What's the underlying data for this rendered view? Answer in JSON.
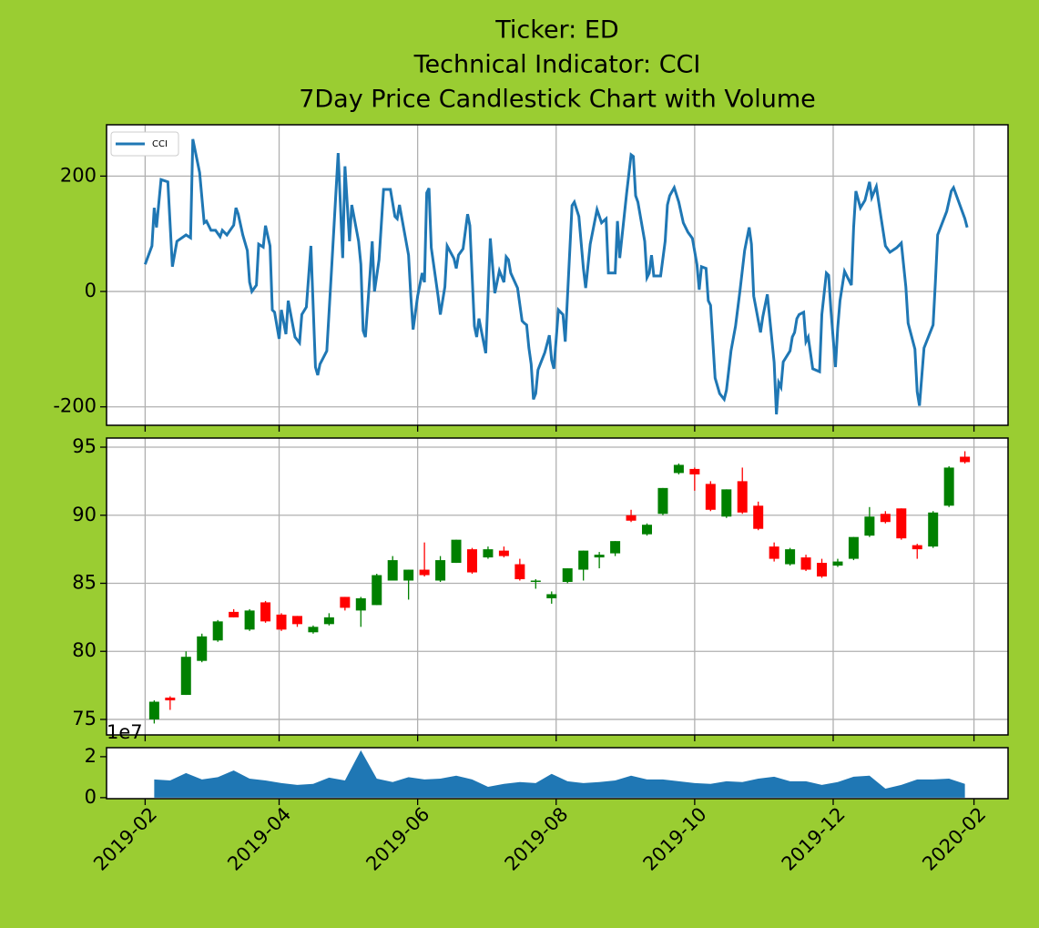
{
  "chart_data": [
    {
      "type": "line",
      "title": [
        "Ticker: ED",
        "Technical Indicator: CCI",
        "7Day Price Candlestick Chart with Volume"
      ],
      "legend": "upper left",
      "grid": true,
      "xlim": [
        "2019-01-15",
        "2020-02-16"
      ],
      "xticks": [
        "2019-02-01",
        "2019-04-01",
        "2019-06-01",
        "2019-08-01",
        "2019-10-01",
        "2019-12-01",
        "2020-02-01"
      ],
      "ylim": [
        -232,
        289
      ],
      "yticks": [
        -200,
        0,
        200
      ],
      "series": [
        {
          "name": "CCI",
          "color": "#1f77b4",
          "x": [
            "2019-02-01",
            "2019-02-04",
            "2019-02-05",
            "2019-02-06",
            "2019-02-08",
            "2019-02-11",
            "2019-02-13",
            "2019-02-15",
            "2019-02-19",
            "2019-02-21",
            "2019-02-22",
            "2019-02-25",
            "2019-02-27",
            "2019-02-28",
            "2019-03-02",
            "2019-03-04",
            "2019-03-06",
            "2019-03-07",
            "2019-03-09",
            "2019-03-12",
            "2019-03-13",
            "2019-03-14",
            "2019-03-16",
            "2019-03-18",
            "2019-03-19",
            "2019-03-20",
            "2019-03-22",
            "2019-03-23",
            "2019-03-25",
            "2019-03-26",
            "2019-03-28",
            "2019-03-29",
            "2019-03-30",
            "2019-04-01",
            "2019-04-02",
            "2019-04-04",
            "2019-04-05",
            "2019-04-08",
            "2019-04-10",
            "2019-04-11",
            "2019-04-13",
            "2019-04-15",
            "2019-04-17",
            "2019-04-18",
            "2019-04-19",
            "2019-04-22",
            "2019-04-24",
            "2019-04-25",
            "2019-04-27",
            "2019-04-28",
            "2019-04-29",
            "2019-04-30",
            "2019-05-02",
            "2019-05-03",
            "2019-05-06",
            "2019-05-07",
            "2019-05-08",
            "2019-05-09",
            "2019-05-11",
            "2019-05-12",
            "2019-05-13",
            "2019-05-15",
            "2019-05-17",
            "2019-05-20",
            "2019-05-22",
            "2019-05-23",
            "2019-05-24",
            "2019-05-28",
            "2019-05-29",
            "2019-05-30",
            "2019-06-01",
            "2019-06-03",
            "2019-06-04",
            "2019-06-05",
            "2019-06-06",
            "2019-06-07",
            "2019-06-10",
            "2019-06-11",
            "2019-06-13",
            "2019-06-14",
            "2019-06-17",
            "2019-06-18",
            "2019-06-19",
            "2019-06-21",
            "2019-06-23",
            "2019-06-24",
            "2019-06-26",
            "2019-06-27",
            "2019-06-28",
            "2019-07-01",
            "2019-07-03",
            "2019-07-05",
            "2019-07-07",
            "2019-07-09",
            "2019-07-10",
            "2019-07-11",
            "2019-07-12",
            "2019-07-15",
            "2019-07-17",
            "2019-07-18",
            "2019-07-19",
            "2019-07-20",
            "2019-07-21",
            "2019-07-22",
            "2019-07-23",
            "2019-07-24",
            "2019-07-25",
            "2019-07-27",
            "2019-07-29",
            "2019-07-30",
            "2019-07-31",
            "2019-08-02",
            "2019-08-04",
            "2019-08-05",
            "2019-08-08",
            "2019-08-09",
            "2019-08-11",
            "2019-08-13",
            "2019-08-14",
            "2019-08-16",
            "2019-08-19",
            "2019-08-21",
            "2019-08-23",
            "2019-08-24",
            "2019-08-27",
            "2019-08-28",
            "2019-08-29",
            "2019-08-30",
            "2019-09-01",
            "2019-09-03",
            "2019-09-04",
            "2019-09-05",
            "2019-09-06",
            "2019-09-09",
            "2019-09-10",
            "2019-09-11",
            "2019-09-12",
            "2019-09-13",
            "2019-09-16",
            "2019-09-18",
            "2019-09-19",
            "2019-09-20",
            "2019-09-22",
            "2019-09-24",
            "2019-09-26",
            "2019-09-28",
            "2019-09-30",
            "2019-10-02",
            "2019-10-03",
            "2019-10-04",
            "2019-10-06",
            "2019-10-07",
            "2019-10-08",
            "2019-10-10",
            "2019-10-12",
            "2019-10-14",
            "2019-10-15",
            "2019-10-17",
            "2019-10-19",
            "2019-10-21",
            "2019-10-23",
            "2019-10-25",
            "2019-10-26",
            "2019-10-27",
            "2019-10-30",
            "2019-10-31",
            "2019-11-02",
            "2019-11-05",
            "2019-11-06",
            "2019-11-07",
            "2019-11-08",
            "2019-11-09",
            "2019-11-12",
            "2019-11-13",
            "2019-11-14",
            "2019-11-15",
            "2019-11-16",
            "2019-11-18",
            "2019-11-19",
            "2019-11-20",
            "2019-11-22",
            "2019-11-25",
            "2019-11-26",
            "2019-11-28",
            "2019-11-29",
            "2019-11-30",
            "2019-12-02",
            "2019-12-03",
            "2019-12-04",
            "2019-12-06",
            "2019-12-09",
            "2019-12-10",
            "2019-12-11",
            "2019-12-13",
            "2019-12-15",
            "2019-12-17",
            "2019-12-18",
            "2019-12-20",
            "2019-12-22",
            "2019-12-24",
            "2019-12-26",
            "2019-12-29",
            "2019-12-31",
            "2020-01-02",
            "2020-01-03",
            "2020-01-06",
            "2020-01-07",
            "2020-01-08",
            "2020-01-10",
            "2020-01-14",
            "2020-01-15",
            "2020-01-16",
            "2020-01-20",
            "2020-01-22",
            "2020-01-23",
            "2020-01-28",
            "2020-01-29"
          ],
          "values": [
            47,
            79,
            145,
            111,
            194,
            190,
            43,
            87,
            98,
            93,
            264,
            206,
            119,
            122,
            106,
            106,
            95,
            106,
            98,
            115,
            145,
            134,
            98,
            71,
            16,
            0,
            11,
            82,
            77,
            114,
            79,
            -32,
            -36,
            -82,
            -32,
            -74,
            -16,
            -79,
            -89,
            -40,
            -27,
            79,
            -131,
            -145,
            -126,
            -103,
            32,
            101,
            240,
            150,
            58,
            217,
            87,
            150,
            87,
            47,
            -68,
            -79,
            28,
            87,
            0,
            55,
            177,
            177,
            130,
            126,
            150,
            63,
            -8,
            -66,
            -8,
            32,
            16,
            171,
            179,
            76,
            -8,
            -40,
            8,
            79,
            57,
            40,
            63,
            74,
            134,
            114,
            -60,
            -79,
            -47,
            -107,
            92,
            -3,
            36,
            16,
            60,
            55,
            32,
            6,
            -51,
            -55,
            -58,
            -98,
            -126,
            -187,
            -177,
            -136,
            -126,
            -106,
            -76,
            -119,
            -134,
            -32,
            -40,
            -87,
            149,
            155,
            130,
            40,
            6,
            82,
            142,
            119,
            126,
            32,
            32,
            122,
            58,
            95,
            169,
            237,
            234,
            166,
            155,
            87,
            24,
            32,
            63,
            27,
            27,
            87,
            150,
            166,
            180,
            155,
            119,
            103,
            92,
            47,
            3,
            43,
            40,
            -16,
            -24,
            -150,
            -177,
            -187,
            -171,
            -103,
            -60,
            3,
            71,
            111,
            82,
            -8,
            -71,
            -44,
            -5,
            -123,
            -213,
            -158,
            -166,
            -122,
            -103,
            -79,
            -71,
            -47,
            -40,
            -36,
            -87,
            -79,
            -134,
            -139,
            -40,
            32,
            28,
            -32,
            -131,
            -63,
            -16,
            35,
            11,
            111,
            174,
            145,
            158,
            190,
            163,
            182,
            130,
            79,
            68,
            76,
            84,
            8,
            -55,
            -100,
            -174,
            -198,
            -98,
            -58,
            16,
            98,
            139,
            174,
            180,
            126,
            111
          ]
        }
      ]
    },
    {
      "type": "candlestick",
      "grid": true,
      "up_color": "#008000",
      "down_color": "#ff0000",
      "xlim": [
        "2019-01-15",
        "2020-02-16"
      ],
      "xticks": [
        "2019-02-01",
        "2019-04-01",
        "2019-06-01",
        "2019-08-01",
        "2019-10-01",
        "2019-12-01",
        "2020-02-01"
      ],
      "ylim": [
        73.86,
        95.67
      ],
      "yticks": [
        75,
        80,
        85,
        90,
        95
      ],
      "x": [
        "2019-02-05",
        "2019-02-12",
        "2019-02-19",
        "2019-02-26",
        "2019-03-05",
        "2019-03-12",
        "2019-03-19",
        "2019-03-26",
        "2019-04-02",
        "2019-04-09",
        "2019-04-16",
        "2019-04-23",
        "2019-04-30",
        "2019-05-07",
        "2019-05-14",
        "2019-05-21",
        "2019-05-28",
        "2019-06-04",
        "2019-06-11",
        "2019-06-18",
        "2019-06-25",
        "2019-07-02",
        "2019-07-09",
        "2019-07-16",
        "2019-07-23",
        "2019-07-30",
        "2019-08-06",
        "2019-08-13",
        "2019-08-20",
        "2019-08-27",
        "2019-09-03",
        "2019-09-10",
        "2019-09-17",
        "2019-09-24",
        "2019-10-01",
        "2019-10-08",
        "2019-10-15",
        "2019-10-22",
        "2019-10-29",
        "2019-11-05",
        "2019-11-12",
        "2019-11-19",
        "2019-11-26",
        "2019-12-03",
        "2019-12-10",
        "2019-12-17",
        "2019-12-24",
        "2019-12-31",
        "2020-01-07",
        "2020-01-14",
        "2020-01-21",
        "2020-01-28"
      ],
      "open": [
        75.0,
        76.6,
        76.8,
        79.3,
        80.8,
        82.9,
        81.6,
        83.6,
        82.7,
        82.6,
        81.4,
        82.0,
        84.0,
        83.0,
        83.4,
        85.2,
        85.2,
        86.0,
        85.2,
        86.5,
        87.5,
        86.9,
        87.4,
        86.4,
        85.1,
        83.9,
        85.1,
        86.0,
        86.9,
        87.2,
        90.0,
        88.6,
        90.1,
        93.1,
        93.4,
        92.3,
        89.9,
        92.5,
        90.7,
        87.7,
        86.4,
        86.9,
        86.5,
        86.3,
        86.8,
        88.5,
        90.1,
        90.5,
        87.8,
        87.7,
        90.7,
        94.3
      ],
      "high": [
        76.4,
        76.7,
        80.0,
        81.3,
        82.3,
        83.1,
        83.1,
        83.7,
        82.8,
        82.6,
        81.9,
        82.8,
        84.0,
        84.0,
        85.7,
        87.0,
        86.0,
        88.0,
        87.0,
        88.2,
        87.6,
        87.7,
        87.7,
        86.8,
        85.3,
        84.4,
        86.1,
        87.4,
        87.3,
        88.1,
        90.4,
        89.4,
        92.0,
        93.8,
        93.5,
        92.5,
        91.9,
        93.5,
        91.0,
        88.0,
        87.6,
        87.1,
        86.8,
        86.8,
        88.4,
        90.6,
        90.3,
        90.5,
        87.9,
        90.3,
        93.6,
        94.7
      ],
      "low": [
        74.7,
        75.7,
        76.8,
        79.2,
        80.7,
        82.5,
        81.5,
        82.1,
        81.5,
        81.8,
        81.3,
        81.9,
        83.0,
        81.8,
        83.4,
        85.2,
        83.8,
        85.5,
        85.1,
        86.5,
        85.7,
        86.8,
        86.9,
        85.2,
        84.6,
        83.5,
        85.0,
        85.2,
        86.1,
        87.0,
        89.5,
        88.5,
        90.0,
        93.0,
        91.8,
        90.3,
        89.8,
        90.1,
        88.9,
        86.6,
        86.3,
        85.9,
        85.4,
        86.2,
        86.7,
        88.4,
        89.4,
        88.2,
        86.8,
        87.6,
        90.6,
        93.8
      ],
      "close": [
        76.3,
        76.4,
        79.6,
        81.1,
        82.2,
        82.5,
        83.0,
        82.2,
        81.6,
        82.0,
        81.8,
        82.5,
        83.2,
        83.9,
        85.6,
        86.7,
        86.0,
        85.6,
        86.7,
        88.2,
        85.8,
        87.5,
        87.0,
        85.3,
        85.2,
        84.2,
        86.1,
        87.4,
        87.1,
        88.1,
        89.6,
        89.3,
        92.0,
        93.7,
        93.0,
        90.4,
        91.9,
        90.2,
        89.0,
        86.8,
        87.5,
        86.0,
        85.5,
        86.6,
        88.4,
        89.9,
        89.5,
        88.3,
        87.5,
        90.2,
        93.5,
        93.9
      ]
    },
    {
      "type": "area",
      "grid": false,
      "color": "#1f77b4",
      "y_offset_label": "1e7",
      "xlim": [
        "2019-01-15",
        "2020-02-16"
      ],
      "xticks": [
        {
          "value": "2019-02-01",
          "label": "2019-02"
        },
        {
          "value": "2019-04-01",
          "label": "2019-04"
        },
        {
          "value": "2019-06-01",
          "label": "2019-06"
        },
        {
          "value": "2019-08-01",
          "label": "2019-08"
        },
        {
          "value": "2019-10-01",
          "label": "2019-10"
        },
        {
          "value": "2019-12-01",
          "label": "2019-12"
        },
        {
          "value": "2020-02-01",
          "label": "2020-02"
        }
      ],
      "ylim": [
        -500000,
        24400000
      ],
      "yticks": [
        0,
        {
          "value": 20000000,
          "label": "2"
        }
      ],
      "x": [
        "2019-02-05",
        "2019-02-12",
        "2019-02-19",
        "2019-02-26",
        "2019-03-05",
        "2019-03-12",
        "2019-03-19",
        "2019-03-26",
        "2019-04-02",
        "2019-04-09",
        "2019-04-16",
        "2019-04-23",
        "2019-04-30",
        "2019-05-07",
        "2019-05-14",
        "2019-05-21",
        "2019-05-28",
        "2019-06-04",
        "2019-06-11",
        "2019-06-18",
        "2019-06-25",
        "2019-07-02",
        "2019-07-09",
        "2019-07-16",
        "2019-07-23",
        "2019-07-30",
        "2019-08-06",
        "2019-08-13",
        "2019-08-20",
        "2019-08-27",
        "2019-09-03",
        "2019-09-10",
        "2019-09-17",
        "2019-09-24",
        "2019-10-01",
        "2019-10-08",
        "2019-10-15",
        "2019-10-22",
        "2019-10-29",
        "2019-11-05",
        "2019-11-12",
        "2019-11-19",
        "2019-11-26",
        "2019-12-03",
        "2019-12-10",
        "2019-12-17",
        "2019-12-24",
        "2019-12-31",
        "2020-01-07",
        "2020-01-14",
        "2020-01-21",
        "2020-01-28"
      ],
      "values": [
        8900000,
        8400000,
        12000000,
        8900000,
        10000000,
        13300000,
        9300000,
        8400000,
        7100000,
        6200000,
        6700000,
        9800000,
        8400000,
        23100000,
        9300000,
        7600000,
        10000000,
        8900000,
        9300000,
        10700000,
        8900000,
        5300000,
        6700000,
        7600000,
        7100000,
        11600000,
        8000000,
        7100000,
        7600000,
        8400000,
        10700000,
        8900000,
        8900000,
        8000000,
        7100000,
        6700000,
        8000000,
        7600000,
        9300000,
        10200000,
        8000000,
        8000000,
        6200000,
        7600000,
        10200000,
        10700000,
        4400000,
        6200000,
        8900000,
        8900000,
        9300000,
        6700000
      ]
    }
  ]
}
